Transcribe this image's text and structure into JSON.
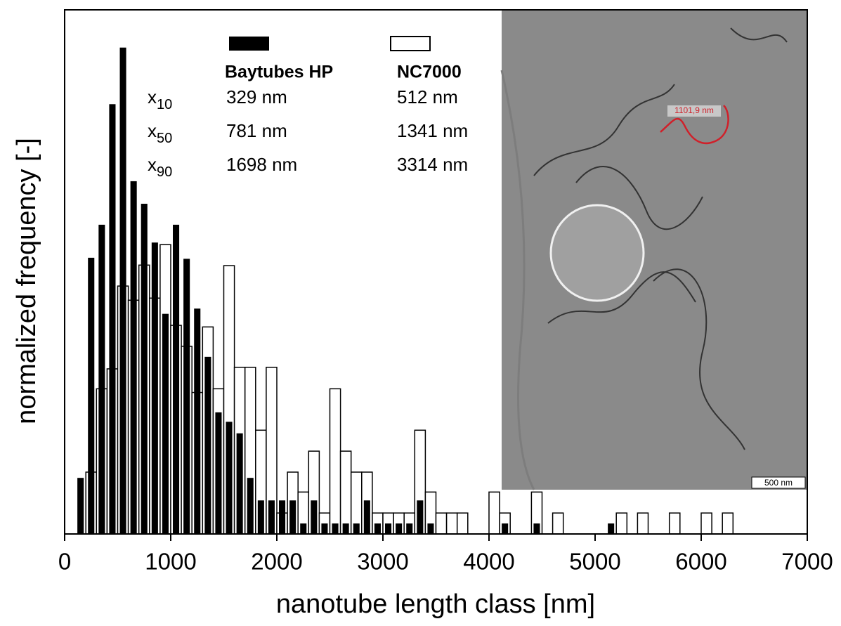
{
  "chart_data": {
    "type": "histogram",
    "x_label": "nanotube length class [nm]",
    "y_label": "normalized frequency [-]",
    "bins": [
      100,
      200,
      300,
      400,
      500,
      600,
      700,
      800,
      900,
      1000,
      1100,
      1200,
      1300,
      1400,
      1500,
      1600,
      1700,
      1800,
      1900,
      2000,
      2100,
      2200,
      2300,
      2400,
      2500,
      2600,
      2700,
      2800,
      2900,
      3000,
      3100,
      3200,
      3300,
      3400,
      3500,
      3600,
      3700,
      3800,
      3900,
      4000,
      4100,
      4200,
      4300,
      4400,
      4500,
      4600,
      4700,
      4800,
      4900,
      5000,
      5100,
      5200,
      5300,
      5400,
      5500,
      5600,
      5700,
      5800,
      5900,
      6000,
      6100,
      6200,
      6300
    ],
    "series": [
      {
        "name": "Baytubes HP",
        "color": "#000000",
        "style": "filled",
        "values": [
          10.7,
          52.7,
          59,
          82,
          92.8,
          67.3,
          63,
          55.6,
          42,
          59,
          52.5,
          43,
          33.8,
          23.2,
          21.4,
          19.2,
          10.7,
          6.4,
          6.4,
          6.4,
          6.4,
          2,
          6.4,
          2,
          2,
          2,
          2,
          6.4,
          2,
          2,
          2,
          2,
          6.4,
          2,
          0,
          0,
          0,
          0,
          0,
          0,
          2,
          0,
          0,
          2,
          0,
          0,
          0,
          0,
          0,
          0,
          2,
          0,
          0,
          0,
          0,
          0,
          0,
          0,
          0,
          0,
          0,
          0
        ]
      },
      {
        "name": "NC7000",
        "color": "#ffffff",
        "style": "outline",
        "values": [
          0,
          11.8,
          27.7,
          31.5,
          47.3,
          44.6,
          51.3,
          45,
          55.2,
          39.8,
          35.8,
          27,
          39.5,
          27.7,
          51.2,
          31.8,
          31.8,
          19.8,
          31.8,
          4,
          11.8,
          8,
          15.8,
          4,
          27.7,
          15.8,
          11.8,
          11.8,
          4,
          4,
          4,
          4,
          19.8,
          8,
          4,
          4,
          4,
          0,
          0,
          8,
          4,
          0,
          0,
          8,
          0,
          4,
          0,
          0,
          0,
          0,
          0,
          4,
          0,
          4,
          0,
          0,
          4,
          0,
          0,
          4,
          0,
          4
        ]
      }
    ],
    "xlim": [
      0,
      7000
    ],
    "xticks": [
      0,
      1000,
      2000,
      3000,
      4000,
      5000,
      6000,
      7000
    ],
    "ylim": [
      0,
      100
    ],
    "stats": [
      {
        "symbol": "x",
        "subscript": "10",
        "values": [
          "329 nm",
          "512 nm"
        ]
      },
      {
        "symbol": "x",
        "subscript": "50",
        "values": [
          "781 nm",
          "1341 nm"
        ]
      },
      {
        "symbol": "x",
        "subscript": "90",
        "values": [
          "1698 nm",
          "3314 nm"
        ]
      }
    ],
    "inset": {
      "measurement": "1101,9 nm",
      "scale_bar": "500 nm"
    }
  }
}
